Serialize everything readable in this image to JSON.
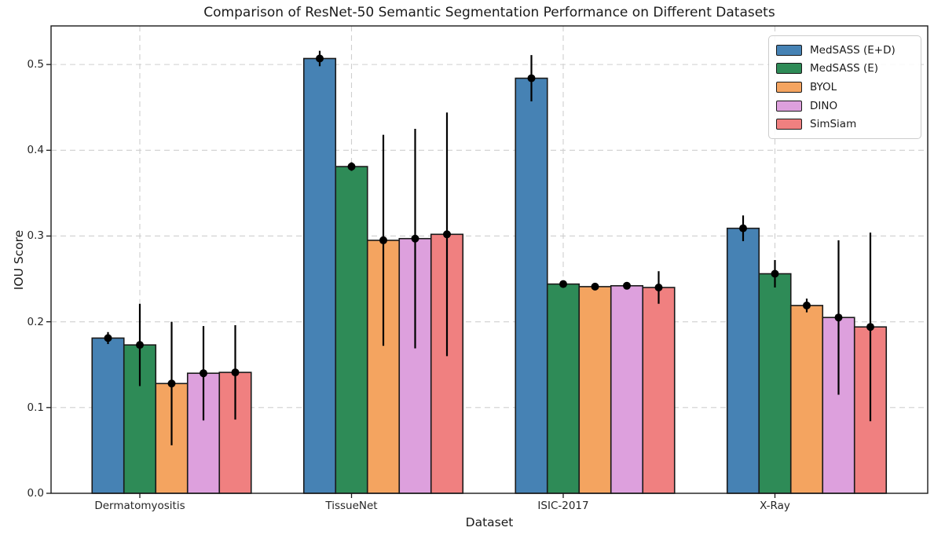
{
  "chart_data": {
    "type": "bar",
    "title": "Comparison of ResNet-50 Semantic Segmentation Performance on Different Datasets",
    "xlabel": "Dataset",
    "ylabel": "IOU Score",
    "categories": [
      "Dermatomyositis",
      "TissueNet",
      "ISIC-2017",
      "X-Ray"
    ],
    "series": [
      {
        "name": "MedSASS (E+D)",
        "color": "#4682B4",
        "values": [
          0.181,
          0.507,
          0.484,
          0.309
        ],
        "errors": [
          0.007,
          0.009,
          0.027,
          0.015
        ]
      },
      {
        "name": "MedSASS (E)",
        "color": "#2E8B57",
        "values": [
          0.173,
          0.381,
          0.244,
          0.256
        ],
        "errors": [
          0.048,
          0.005,
          0.004,
          0.016
        ]
      },
      {
        "name": "BYOL",
        "color": "#F4A460",
        "values": [
          0.128,
          0.295,
          0.241,
          0.219
        ],
        "errors": [
          0.072,
          0.123,
          0.003,
          0.008
        ]
      },
      {
        "name": "DINO",
        "color": "#DDA0DD",
        "values": [
          0.14,
          0.297,
          0.242,
          0.205
        ],
        "errors": [
          0.055,
          0.128,
          0.004,
          0.09
        ]
      },
      {
        "name": "SimSiam",
        "color": "#F08080",
        "values": [
          0.141,
          0.302,
          0.24,
          0.194
        ],
        "errors": [
          0.055,
          0.142,
          0.019,
          0.11
        ]
      }
    ],
    "ylim": [
      0,
      0.545
    ],
    "yticks": [
      0.0,
      0.1,
      0.2,
      0.3,
      0.4,
      0.5
    ],
    "ytick_labels": [
      "0.0",
      "0.1",
      "0.2",
      "0.3",
      "0.4",
      "0.5"
    ],
    "grid": "dashed, both axes",
    "legend_position": "upper right",
    "bar_edge_color": "#1a1a1a",
    "error_bar_color": "#000000",
    "marker": "circle",
    "background_color": "#ffffff",
    "grid_color": "#cfcfcf"
  }
}
